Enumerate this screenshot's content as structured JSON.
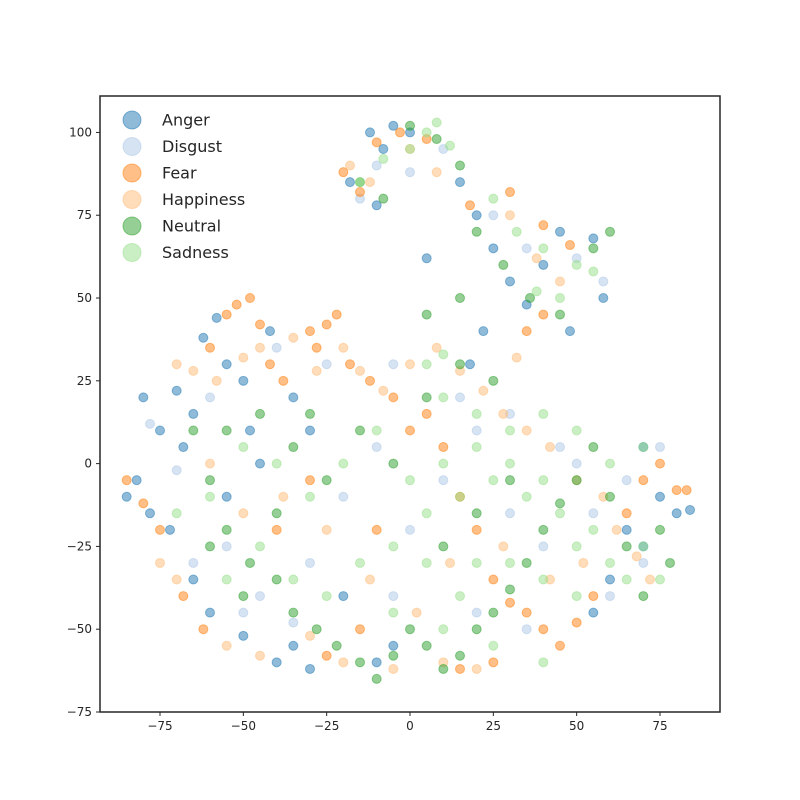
{
  "chart_data": {
    "type": "scatter",
    "title": "",
    "xlabel": "",
    "ylabel": "",
    "xlim": [
      -93,
      93
    ],
    "ylim": [
      -75,
      111
    ],
    "xticks": [
      -75,
      -50,
      -25,
      0,
      25,
      50,
      75
    ],
    "yticks": [
      -75,
      -50,
      -25,
      0,
      25,
      50,
      75,
      100
    ],
    "xtick_labels": [
      "−75",
      "−50",
      "−25",
      "0",
      "25",
      "50",
      "75"
    ],
    "ytick_labels": [
      "−75",
      "−50",
      "−25",
      "0",
      "25",
      "50",
      "75",
      "100"
    ],
    "grid": false,
    "legend_position": "top-left",
    "marker_alpha": 0.5,
    "series": [
      {
        "name": "Anger",
        "color": "#1f77b4",
        "points": [
          [
            -80,
            20
          ],
          [
            -75,
            10
          ],
          [
            -70,
            22
          ],
          [
            -82,
            -5
          ],
          [
            -72,
            -20
          ],
          [
            -65,
            -35
          ],
          [
            -60,
            -45
          ],
          [
            -55,
            30
          ],
          [
            -50,
            25
          ],
          [
            -45,
            0
          ],
          [
            -40,
            -60
          ],
          [
            -35,
            -55
          ],
          [
            -30,
            -62
          ],
          [
            -78,
            -15
          ],
          [
            -68,
            5
          ],
          [
            -62,
            38
          ],
          [
            -58,
            44
          ],
          [
            -85,
            -10
          ],
          [
            -50,
            -52
          ],
          [
            -42,
            40
          ],
          [
            -20,
            -40
          ],
          [
            -10,
            -60
          ],
          [
            -5,
            -55
          ],
          [
            -8,
            95
          ],
          [
            -12,
            100
          ],
          [
            -5,
            102
          ],
          [
            -18,
            85
          ],
          [
            -10,
            78
          ],
          [
            0,
            100
          ],
          [
            5,
            62
          ],
          [
            15,
            85
          ],
          [
            20,
            75
          ],
          [
            25,
            65
          ],
          [
            30,
            55
          ],
          [
            35,
            48
          ],
          [
            40,
            60
          ],
          [
            45,
            70
          ],
          [
            55,
            68
          ],
          [
            58,
            50
          ],
          [
            48,
            40
          ],
          [
            22,
            40
          ],
          [
            18,
            30
          ],
          [
            65,
            -20
          ],
          [
            70,
            -25
          ],
          [
            75,
            -10
          ],
          [
            80,
            -15
          ],
          [
            84,
            -14
          ],
          [
            70,
            5
          ],
          [
            60,
            -35
          ],
          [
            55,
            -45
          ],
          [
            -48,
            10
          ],
          [
            -55,
            -10
          ],
          [
            -65,
            15
          ],
          [
            -35,
            20
          ],
          [
            -30,
            10
          ]
        ]
      },
      {
        "name": "Disgust",
        "color": "#aec7e8",
        "points": [
          [
            -78,
            12
          ],
          [
            -70,
            -2
          ],
          [
            -60,
            20
          ],
          [
            -55,
            -25
          ],
          [
            -45,
            -40
          ],
          [
            -30,
            -30
          ],
          [
            -20,
            -10
          ],
          [
            -10,
            5
          ],
          [
            0,
            -20
          ],
          [
            10,
            -5
          ],
          [
            20,
            10
          ],
          [
            30,
            -15
          ],
          [
            40,
            -25
          ],
          [
            50,
            0
          ],
          [
            60,
            -40
          ],
          [
            70,
            -30
          ],
          [
            -15,
            80
          ],
          [
            -10,
            90
          ],
          [
            0,
            88
          ],
          [
            10,
            95
          ],
          [
            25,
            75
          ],
          [
            35,
            65
          ],
          [
            50,
            62
          ],
          [
            58,
            55
          ],
          [
            -40,
            35
          ],
          [
            -25,
            30
          ],
          [
            -5,
            30
          ],
          [
            15,
            20
          ],
          [
            30,
            15
          ],
          [
            45,
            5
          ],
          [
            55,
            -15
          ],
          [
            65,
            -5
          ],
          [
            75,
            5
          ],
          [
            -65,
            -30
          ],
          [
            -50,
            -45
          ],
          [
            -35,
            -48
          ],
          [
            -5,
            -40
          ],
          [
            20,
            -45
          ],
          [
            35,
            -50
          ]
        ]
      },
      {
        "name": "Fear",
        "color": "#ff7f0e",
        "points": [
          [
            -55,
            45
          ],
          [
            -52,
            48
          ],
          [
            -48,
            50
          ],
          [
            -45,
            42
          ],
          [
            -60,
            35
          ],
          [
            -42,
            30
          ],
          [
            -38,
            25
          ],
          [
            -30,
            40
          ],
          [
            -25,
            42
          ],
          [
            -22,
            45
          ],
          [
            -28,
            35
          ],
          [
            -18,
            30
          ],
          [
            -12,
            25
          ],
          [
            -5,
            20
          ],
          [
            0,
            10
          ],
          [
            5,
            15
          ],
          [
            10,
            5
          ],
          [
            15,
            -10
          ],
          [
            20,
            -20
          ],
          [
            25,
            -35
          ],
          [
            30,
            -42
          ],
          [
            35,
            -45
          ],
          [
            40,
            -50
          ],
          [
            45,
            -55
          ],
          [
            50,
            -48
          ],
          [
            55,
            -40
          ],
          [
            65,
            -15
          ],
          [
            70,
            -5
          ],
          [
            75,
            0
          ],
          [
            80,
            -8
          ],
          [
            83,
            -8
          ],
          [
            -85,
            -5
          ],
          [
            -80,
            -12
          ],
          [
            -75,
            -20
          ],
          [
            -68,
            -40
          ],
          [
            -62,
            -50
          ],
          [
            -20,
            88
          ],
          [
            -15,
            82
          ],
          [
            -10,
            97
          ],
          [
            -3,
            100
          ],
          [
            5,
            98
          ],
          [
            18,
            78
          ],
          [
            30,
            82
          ],
          [
            40,
            72
          ],
          [
            48,
            66
          ],
          [
            40,
            45
          ],
          [
            35,
            40
          ],
          [
            25,
            -60
          ],
          [
            15,
            -62
          ],
          [
            -15,
            -50
          ],
          [
            -25,
            -58
          ],
          [
            -40,
            -20
          ],
          [
            -30,
            -5
          ],
          [
            -10,
            -20
          ]
        ]
      },
      {
        "name": "Happiness",
        "color": "#ffbb78",
        "points": [
          [
            -70,
            30
          ],
          [
            -65,
            28
          ],
          [
            -58,
            25
          ],
          [
            -50,
            32
          ],
          [
            -45,
            35
          ],
          [
            -35,
            38
          ],
          [
            -28,
            28
          ],
          [
            -20,
            35
          ],
          [
            -15,
            28
          ],
          [
            -8,
            22
          ],
          [
            0,
            30
          ],
          [
            8,
            35
          ],
          [
            15,
            28
          ],
          [
            22,
            22
          ],
          [
            28,
            15
          ],
          [
            35,
            10
          ],
          [
            42,
            5
          ],
          [
            50,
            -5
          ],
          [
            58,
            -10
          ],
          [
            62,
            -20
          ],
          [
            68,
            -28
          ],
          [
            72,
            -35
          ],
          [
            -75,
            -30
          ],
          [
            -70,
            -35
          ],
          [
            -55,
            -55
          ],
          [
            -45,
            -58
          ],
          [
            -30,
            -52
          ],
          [
            -20,
            -60
          ],
          [
            -5,
            -62
          ],
          [
            10,
            -60
          ],
          [
            20,
            -62
          ],
          [
            -18,
            90
          ],
          [
            -12,
            85
          ],
          [
            0,
            95
          ],
          [
            8,
            88
          ],
          [
            30,
            75
          ],
          [
            38,
            62
          ],
          [
            45,
            55
          ],
          [
            32,
            32
          ],
          [
            -60,
            0
          ],
          [
            -50,
            -15
          ],
          [
            -38,
            -10
          ],
          [
            -25,
            -20
          ],
          [
            -12,
            -35
          ],
          [
            2,
            -45
          ],
          [
            12,
            -30
          ],
          [
            28,
            -25
          ],
          [
            42,
            -35
          ],
          [
            52,
            -30
          ]
        ]
      },
      {
        "name": "Neutral",
        "color": "#2ca02c",
        "points": [
          [
            -65,
            10
          ],
          [
            -60,
            -5
          ],
          [
            -55,
            -20
          ],
          [
            -48,
            -30
          ],
          [
            -40,
            -35
          ],
          [
            -35,
            -45
          ],
          [
            -28,
            -50
          ],
          [
            -22,
            -55
          ],
          [
            -15,
            -60
          ],
          [
            -10,
            -65
          ],
          [
            -5,
            -58
          ],
          [
            0,
            -50
          ],
          [
            5,
            -55
          ],
          [
            10,
            -62
          ],
          [
            15,
            -58
          ],
          [
            20,
            -50
          ],
          [
            25,
            -45
          ],
          [
            30,
            -38
          ],
          [
            35,
            -30
          ],
          [
            40,
            -20
          ],
          [
            45,
            -12
          ],
          [
            50,
            -5
          ],
          [
            55,
            5
          ],
          [
            60,
            -10
          ],
          [
            65,
            -25
          ],
          [
            70,
            -40
          ],
          [
            75,
            -20
          ],
          [
            78,
            -30
          ],
          [
            -55,
            10
          ],
          [
            -45,
            15
          ],
          [
            -35,
            5
          ],
          [
            -25,
            -5
          ],
          [
            -15,
            10
          ],
          [
            -5,
            0
          ],
          [
            5,
            20
          ],
          [
            15,
            30
          ],
          [
            25,
            25
          ],
          [
            30,
            -5
          ],
          [
            20,
            -15
          ],
          [
            10,
            -25
          ],
          [
            -15,
            85
          ],
          [
            -8,
            80
          ],
          [
            0,
            102
          ],
          [
            8,
            98
          ],
          [
            15,
            90
          ],
          [
            20,
            70
          ],
          [
            28,
            60
          ],
          [
            36,
            50
          ],
          [
            45,
            45
          ],
          [
            55,
            65
          ],
          [
            60,
            70
          ],
          [
            5,
            45
          ],
          [
            15,
            50
          ],
          [
            -30,
            15
          ],
          [
            -40,
            -15
          ],
          [
            -50,
            -40
          ],
          [
            -60,
            -25
          ]
        ]
      },
      {
        "name": "Sadness",
        "color": "#98df8a",
        "points": [
          [
            -10,
            10
          ],
          [
            0,
            -5
          ],
          [
            5,
            -15
          ],
          [
            10,
            0
          ],
          [
            15,
            -10
          ],
          [
            20,
            5
          ],
          [
            25,
            -5
          ],
          [
            30,
            0
          ],
          [
            35,
            -10
          ],
          [
            40,
            -5
          ],
          [
            45,
            -15
          ],
          [
            50,
            -25
          ],
          [
            55,
            -20
          ],
          [
            60,
            -30
          ],
          [
            65,
            -35
          ],
          [
            70,
            -25
          ],
          [
            75,
            -35
          ],
          [
            20,
            -30
          ],
          [
            30,
            -30
          ],
          [
            40,
            -35
          ],
          [
            50,
            -40
          ],
          [
            15,
            -40
          ],
          [
            5,
            -30
          ],
          [
            -5,
            -25
          ],
          [
            -15,
            -30
          ],
          [
            -25,
            -40
          ],
          [
            -35,
            -35
          ],
          [
            -45,
            -25
          ],
          [
            -55,
            -35
          ],
          [
            -20,
            0
          ],
          [
            -30,
            -10
          ],
          [
            -40,
            0
          ],
          [
            -50,
            5
          ],
          [
            -60,
            -10
          ],
          [
            -70,
            -15
          ],
          [
            10,
            20
          ],
          [
            20,
            15
          ],
          [
            30,
            10
          ],
          [
            40,
            15
          ],
          [
            50,
            10
          ],
          [
            60,
            0
          ],
          [
            70,
            5
          ],
          [
            -15,
            85
          ],
          [
            -8,
            92
          ],
          [
            0,
            95
          ],
          [
            5,
            100
          ],
          [
            8,
            103
          ],
          [
            12,
            96
          ],
          [
            25,
            80
          ],
          [
            32,
            70
          ],
          [
            40,
            65
          ],
          [
            50,
            60
          ],
          [
            55,
            58
          ],
          [
            45,
            50
          ],
          [
            38,
            52
          ],
          [
            5,
            30
          ],
          [
            10,
            33
          ],
          [
            -5,
            -45
          ],
          [
            10,
            -50
          ],
          [
            25,
            -55
          ],
          [
            40,
            -60
          ]
        ]
      }
    ]
  }
}
